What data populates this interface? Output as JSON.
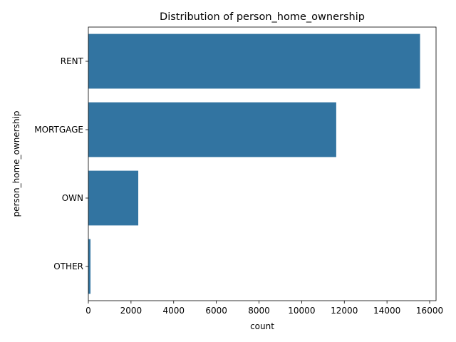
{
  "chart_data": {
    "type": "bar",
    "orientation": "horizontal",
    "title": "Distribution of person_home_ownership",
    "xlabel": "count",
    "ylabel": "person_home_ownership",
    "categories": [
      "RENT",
      "MORTGAGE",
      "OWN",
      "OTHER"
    ],
    "values": [
      15550,
      11620,
      2340,
      100
    ],
    "xlim": [
      0,
      16300
    ],
    "xticks": [
      0,
      2000,
      4000,
      6000,
      8000,
      10000,
      12000,
      14000,
      16000
    ],
    "xtick_labels": [
      "0",
      "2000",
      "4000",
      "6000",
      "8000",
      "10000",
      "12000",
      "14000",
      "16000"
    ],
    "bar_color": "#3274a1",
    "grid": false,
    "legend": "none"
  }
}
